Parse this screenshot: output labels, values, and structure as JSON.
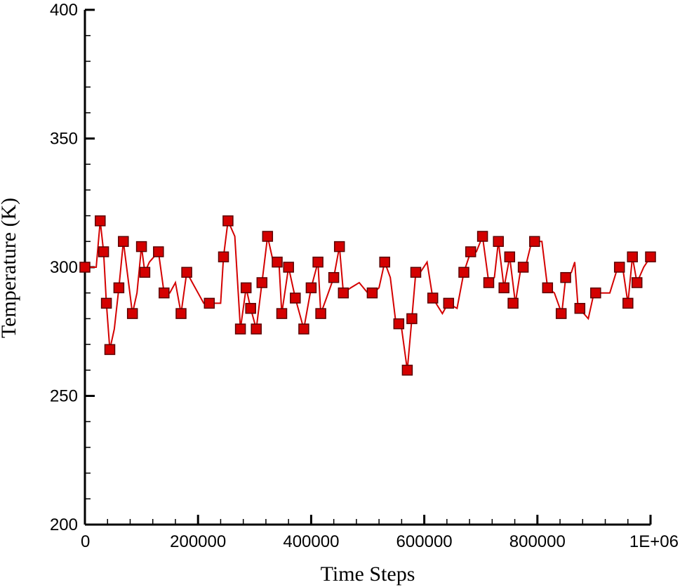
{
  "chart_data": {
    "type": "line",
    "xlabel": "Time Steps",
    "ylabel": "Temperature (K)",
    "xlim": [
      0,
      1000000
    ],
    "ylim": [
      200,
      400
    ],
    "x_ticks": [
      {
        "value": 0,
        "label": "0"
      },
      {
        "value": 200000,
        "label": "200000"
      },
      {
        "value": 400000,
        "label": "400000"
      },
      {
        "value": 600000,
        "label": "600000"
      },
      {
        "value": 800000,
        "label": "800000"
      },
      {
        "value": 1000000,
        "label": "1E+06"
      }
    ],
    "y_ticks": [
      {
        "value": 200,
        "label": "200"
      },
      {
        "value": 250,
        "label": "250"
      },
      {
        "value": 300,
        "label": "300"
      },
      {
        "value": 350,
        "label": "350"
      },
      {
        "value": 400,
        "label": "400"
      }
    ],
    "grid": false,
    "line_color": "#d40000",
    "marker_fill": "#d40000",
    "marker_stroke": "#5a0000",
    "line_points": [
      [
        0,
        300
      ],
      [
        10000,
        300
      ],
      [
        20000,
        300
      ],
      [
        27000,
        318
      ],
      [
        33000,
        306
      ],
      [
        38000,
        286
      ],
      [
        44000,
        268
      ],
      [
        52000,
        276
      ],
      [
        60000,
        292
      ],
      [
        68000,
        310
      ],
      [
        76000,
        296
      ],
      [
        84000,
        282
      ],
      [
        92000,
        290
      ],
      [
        100000,
        308
      ],
      [
        106000,
        298
      ],
      [
        114000,
        302
      ],
      [
        122000,
        304
      ],
      [
        130000,
        306
      ],
      [
        140000,
        290
      ],
      [
        150000,
        290
      ],
      [
        160000,
        294
      ],
      [
        170000,
        282
      ],
      [
        180000,
        298
      ],
      [
        190000,
        294
      ],
      [
        200000,
        290
      ],
      [
        210000,
        286
      ],
      [
        220000,
        286
      ],
      [
        230000,
        286
      ],
      [
        240000,
        286
      ],
      [
        245000,
        304
      ],
      [
        253000,
        318
      ],
      [
        265000,
        312
      ],
      [
        275000,
        276
      ],
      [
        285000,
        292
      ],
      [
        293000,
        284
      ],
      [
        303000,
        276
      ],
      [
        313000,
        294
      ],
      [
        323000,
        312
      ],
      [
        333000,
        302
      ],
      [
        343000,
        302
      ],
      [
        348000,
        282
      ],
      [
        360000,
        300
      ],
      [
        372000,
        288
      ],
      [
        387000,
        276
      ],
      [
        400000,
        292
      ],
      [
        412000,
        302
      ],
      [
        417000,
        282
      ],
      [
        427000,
        288
      ],
      [
        440000,
        296
      ],
      [
        450000,
        308
      ],
      [
        457000,
        290
      ],
      [
        470000,
        292
      ],
      [
        485000,
        294
      ],
      [
        500000,
        290
      ],
      [
        510000,
        290
      ],
      [
        520000,
        292
      ],
      [
        530000,
        302
      ],
      [
        540000,
        296
      ],
      [
        550000,
        278
      ],
      [
        560000,
        276
      ],
      [
        570000,
        260
      ],
      [
        578000,
        280
      ],
      [
        585000,
        298
      ],
      [
        593000,
        298
      ],
      [
        605000,
        302
      ],
      [
        615000,
        288
      ],
      [
        632000,
        282
      ],
      [
        642000,
        286
      ],
      [
        658000,
        284
      ],
      [
        670000,
        298
      ],
      [
        682000,
        306
      ],
      [
        692000,
        306
      ],
      [
        703000,
        312
      ],
      [
        714000,
        294
      ],
      [
        724000,
        296
      ],
      [
        731000,
        310
      ],
      [
        741000,
        292
      ],
      [
        751000,
        304
      ],
      [
        761000,
        286
      ],
      [
        771000,
        300
      ],
      [
        781000,
        302
      ],
      [
        790000,
        310
      ],
      [
        800000,
        310
      ],
      [
        808000,
        310
      ],
      [
        818000,
        292
      ],
      [
        830000,
        290
      ],
      [
        843000,
        282
      ],
      [
        850000,
        296
      ],
      [
        860000,
        298
      ],
      [
        866000,
        302
      ],
      [
        872000,
        284
      ],
      [
        882000,
        282
      ],
      [
        890000,
        280
      ],
      [
        900000,
        290
      ],
      [
        912000,
        290
      ],
      [
        928000,
        290
      ],
      [
        942000,
        300
      ],
      [
        952000,
        298
      ],
      [
        960000,
        286
      ],
      [
        968000,
        304
      ],
      [
        976000,
        294
      ],
      [
        988000,
        300
      ],
      [
        1000000,
        304
      ]
    ],
    "markers": [
      [
        0,
        300
      ],
      [
        27000,
        318
      ],
      [
        33000,
        306
      ],
      [
        38000,
        286
      ],
      [
        44000,
        268
      ],
      [
        60000,
        292
      ],
      [
        68000,
        310
      ],
      [
        84000,
        282
      ],
      [
        100000,
        308
      ],
      [
        106000,
        298
      ],
      [
        130000,
        306
      ],
      [
        140000,
        290
      ],
      [
        170000,
        282
      ],
      [
        180000,
        298
      ],
      [
        220000,
        286
      ],
      [
        245000,
        304
      ],
      [
        253000,
        318
      ],
      [
        275000,
        276
      ],
      [
        285000,
        292
      ],
      [
        293000,
        284
      ],
      [
        303000,
        276
      ],
      [
        313000,
        294
      ],
      [
        323000,
        312
      ],
      [
        340000,
        302
      ],
      [
        348000,
        282
      ],
      [
        360000,
        300
      ],
      [
        372000,
        288
      ],
      [
        387000,
        276
      ],
      [
        400000,
        292
      ],
      [
        412000,
        302
      ],
      [
        417000,
        282
      ],
      [
        440000,
        296
      ],
      [
        450000,
        308
      ],
      [
        457000,
        290
      ],
      [
        508000,
        290
      ],
      [
        530000,
        302
      ],
      [
        555000,
        278
      ],
      [
        570000,
        260
      ],
      [
        578000,
        280
      ],
      [
        585000,
        298
      ],
      [
        615000,
        288
      ],
      [
        643000,
        286
      ],
      [
        670000,
        298
      ],
      [
        682000,
        306
      ],
      [
        703000,
        312
      ],
      [
        714000,
        294
      ],
      [
        731000,
        310
      ],
      [
        741000,
        292
      ],
      [
        751000,
        304
      ],
      [
        757000,
        286
      ],
      [
        775000,
        300
      ],
      [
        795000,
        310
      ],
      [
        818000,
        292
      ],
      [
        842000,
        282
      ],
      [
        850000,
        296
      ],
      [
        875000,
        284
      ],
      [
        903000,
        290
      ],
      [
        945000,
        300
      ],
      [
        960000,
        286
      ],
      [
        968000,
        304
      ],
      [
        976000,
        294
      ],
      [
        1000000,
        304
      ]
    ]
  }
}
